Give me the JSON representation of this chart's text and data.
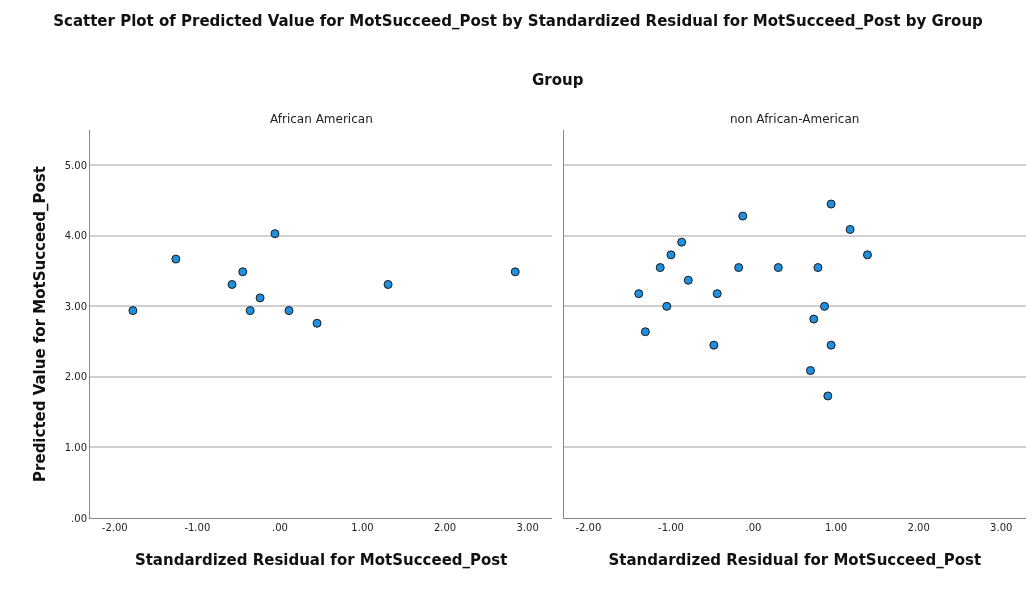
{
  "chart_data": [
    {
      "type": "scatter",
      "title": "Scatter Plot of Predicted Value for MotSucceed_Post by Standardized Residual for MotSucceed_Post by Group",
      "annotations": [
        "Group"
      ],
      "subtitle": "African American",
      "xlabel": "Standardized Residual for MotSucceed_Post",
      "ylabel": "Predicted Value for MotSucceed_Post",
      "x": [
        -1.78,
        -1.26,
        -0.58,
        -0.45,
        -0.36,
        -0.24,
        -0.06,
        0.11,
        0.45,
        1.31,
        2.85
      ],
      "series": [
        {
          "color": "#1f8fe0",
          "values": [
            2.94,
            3.67,
            3.31,
            3.49,
            2.94,
            3.12,
            4.03,
            2.94,
            2.76,
            3.31,
            3.49
          ]
        }
      ],
      "xlim": [
        -2.3,
        3.3
      ],
      "ylim": [
        0,
        5.5
      ],
      "xticks": [
        {
          "value": -2,
          "label": "-2.00"
        },
        {
          "value": -1,
          "label": "-1.00"
        },
        {
          "value": 0,
          "label": ".00"
        },
        {
          "value": 1,
          "label": "1.00"
        },
        {
          "value": 2,
          "label": "2.00"
        },
        {
          "value": 3,
          "label": "3.00"
        }
      ],
      "yticks": [
        {
          "value": 0,
          "label": ".00"
        },
        {
          "value": 1,
          "label": "1.00"
        },
        {
          "value": 2,
          "label": "2.00"
        },
        {
          "value": 3,
          "label": "3.00"
        },
        {
          "value": 4,
          "label": "4.00"
        },
        {
          "value": 5,
          "label": "5.00"
        }
      ],
      "grid": "y",
      "marker": "circle"
    },
    {
      "type": "scatter",
      "subtitle": "non African-American",
      "xlabel": "Standardized Residual for MotSucceed_Post",
      "x": [
        -1.39,
        -1.31,
        -1.13,
        -1.05,
        -1.0,
        -0.87,
        -0.79,
        -0.48,
        -0.44,
        -0.18,
        -0.13,
        0.3,
        0.69,
        0.73,
        0.78,
        0.86,
        0.9,
        0.94,
        0.94,
        1.17,
        1.38
      ],
      "series": [
        {
          "color": "#1f8fe0",
          "values": [
            3.18,
            2.64,
            3.55,
            3.0,
            3.73,
            3.91,
            3.37,
            2.45,
            3.18,
            3.55,
            4.28,
            3.55,
            2.09,
            2.82,
            3.55,
            3.0,
            1.73,
            2.45,
            4.45,
            4.09,
            3.73
          ]
        }
      ],
      "xlim": [
        -2.3,
        3.3
      ],
      "ylim": [
        0,
        5.5
      ],
      "xticks": [
        {
          "value": -2,
          "label": "-2.00"
        },
        {
          "value": -1,
          "label": "-1.00"
        },
        {
          "value": 0,
          "label": ".00"
        },
        {
          "value": 1,
          "label": "1.00"
        },
        {
          "value": 2,
          "label": "2.00"
        },
        {
          "value": 3,
          "label": "3.00"
        }
      ],
      "yticks": [
        0,
        1,
        2,
        3,
        4,
        5
      ],
      "tick_labels": "x",
      "grid": "y",
      "marker": "circle"
    }
  ]
}
